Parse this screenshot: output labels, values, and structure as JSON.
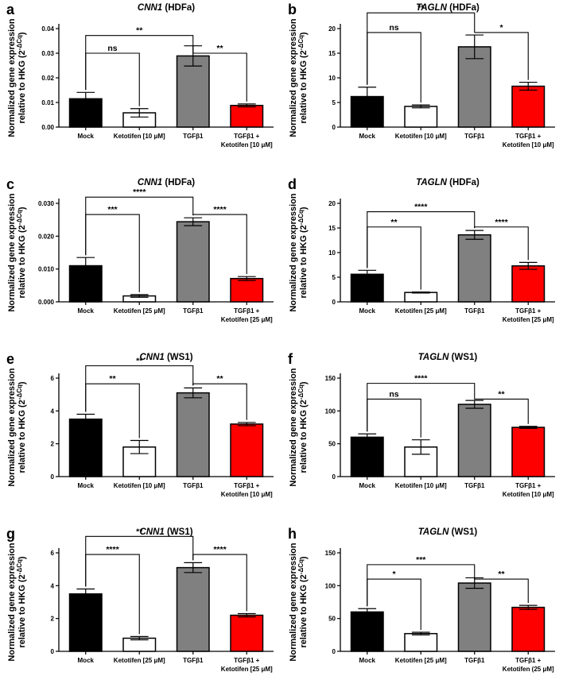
{
  "figure_id": "ketotifen-expression-figure",
  "chart_data": [
    {
      "panel": "a",
      "type": "bar",
      "title_gene": "CNN1",
      "title_cell": " (HDFa)",
      "ylabel_line1": "Normalized gene expression",
      "ylabel_line2": "relative to HKG (2",
      "ylabel_sup": "-ΔCq",
      "ylabel_end": ")",
      "categories": [
        [
          "Mock"
        ],
        [
          "Ketotifen [10 μM]"
        ],
        [
          "TGFβ1"
        ],
        [
          "TGFβ1 +",
          "Ketotifen [10 μM]"
        ]
      ],
      "values": [
        0.0115,
        0.0058,
        0.0289,
        0.0088
      ],
      "errors": [
        0.0026,
        0.0017,
        0.0041,
        0.0006
      ],
      "colors": [
        "#000000",
        "#ffffff",
        "#808080",
        "#ff0000"
      ],
      "ylim": [
        0,
        0.04
      ],
      "yticks": [
        0,
        0.01,
        0.02,
        0.03,
        0.04
      ],
      "ytick_labels": [
        "0.00",
        "0.01",
        "0.02",
        "0.03",
        "0.04"
      ],
      "brackets": [
        {
          "from": 0,
          "to": 2,
          "label": "**",
          "y": 0.0372
        },
        {
          "from": 0,
          "to": 1,
          "label": "ns",
          "y": 0.03
        },
        {
          "from": 2,
          "to": 3,
          "label": "**",
          "y": 0.03
        }
      ]
    },
    {
      "panel": "b",
      "type": "bar",
      "title_gene": "TAGLN",
      "title_cell": " (HDFa)",
      "ylabel_line1": "Normalized gene expression",
      "ylabel_line2": "relative to HKG (2",
      "ylabel_sup": "-ΔCq",
      "ylabel_end": ")",
      "categories": [
        [
          "Mock"
        ],
        [
          "Ketotifen [10 μM]"
        ],
        [
          "TGFβ1"
        ],
        [
          "TGFβ1 +",
          "Ketotifen [10 μM]"
        ]
      ],
      "values": [
        6.2,
        4.2,
        16.3,
        8.3
      ],
      "errors": [
        1.9,
        0.3,
        2.4,
        0.8
      ],
      "colors": [
        "#000000",
        "#ffffff",
        "#808080",
        "#ff0000"
      ],
      "ylim": [
        0,
        20
      ],
      "yticks": [
        0,
        5,
        10,
        15,
        20
      ],
      "ytick_labels": [
        "0",
        "5",
        "10",
        "15",
        "20"
      ],
      "brackets": [
        {
          "from": 0,
          "to": 2,
          "label": "**",
          "y": 23.2
        },
        {
          "from": 0,
          "to": 1,
          "label": "ns",
          "y": 19.2
        },
        {
          "from": 2,
          "to": 3,
          "label": "*",
          "y": 19.2
        }
      ]
    },
    {
      "panel": "c",
      "type": "bar",
      "title_gene": "CNN1",
      "title_cell": " (HDFa)",
      "ylabel_line1": "Normalized gene expression",
      "ylabel_line2": "relative to HKG (2",
      "ylabel_sup": "-ΔCq",
      "ylabel_end": ")",
      "categories": [
        [
          "Mock"
        ],
        [
          "Ketotifen [25 μM]"
        ],
        [
          "TGFβ1"
        ],
        [
          "TGFβ1 +",
          "Ketotifen [25 μM]"
        ]
      ],
      "values": [
        0.011,
        0.0018,
        0.0244,
        0.0071
      ],
      "errors": [
        0.0025,
        0.0004,
        0.0012,
        0.0006
      ],
      "colors": [
        "#000000",
        "#ffffff",
        "#808080",
        "#ff0000"
      ],
      "ylim": [
        0,
        0.03
      ],
      "yticks": [
        0,
        0.01,
        0.02,
        0.03
      ],
      "ytick_labels": [
        "0.000",
        "0.010",
        "0.020",
        "0.030"
      ],
      "brackets": [
        {
          "from": 0,
          "to": 2,
          "label": "****",
          "y": 0.0319
        },
        {
          "from": 0,
          "to": 1,
          "label": "***",
          "y": 0.0266
        },
        {
          "from": 2,
          "to": 3,
          "label": "****",
          "y": 0.0266
        }
      ]
    },
    {
      "panel": "d",
      "type": "bar",
      "title_gene": "TAGLN",
      "title_cell": " (HDFa)",
      "ylabel_line1": "Normalized gene expression",
      "ylabel_line2": "relative to HKG (2",
      "ylabel_sup": "-ΔCq",
      "ylabel_end": ")",
      "categories": [
        [
          "Mock"
        ],
        [
          "Ketotifen [25 μM]"
        ],
        [
          "TGFβ1"
        ],
        [
          "TGFβ1 +",
          "Ketotifen [25 μM]"
        ]
      ],
      "values": [
        5.6,
        1.9,
        13.6,
        7.3
      ],
      "errors": [
        0.8,
        0.1,
        0.9,
        0.7
      ],
      "colors": [
        "#000000",
        "#ffffff",
        "#808080",
        "#ff0000"
      ],
      "ylim": [
        0,
        20
      ],
      "yticks": [
        0,
        5,
        10,
        15,
        20
      ],
      "ytick_labels": [
        "0",
        "5",
        "10",
        "15",
        "20"
      ],
      "brackets": [
        {
          "from": 0,
          "to": 2,
          "label": "****",
          "y": 18.3
        },
        {
          "from": 0,
          "to": 1,
          "label": "**",
          "y": 15.2
        },
        {
          "from": 2,
          "to": 3,
          "label": "****",
          "y": 15.2
        }
      ]
    },
    {
      "panel": "e",
      "type": "bar",
      "title_gene": "CNN1",
      "title_cell": " (WS1)",
      "ylabel_line1": "Normalized gene expression",
      "ylabel_line2": "relative to HKG (2",
      "ylabel_sup": "-ΔCq",
      "ylabel_end": ")",
      "categories": [
        [
          "Mock"
        ],
        [
          "Ketotifen [10 μM]"
        ],
        [
          "TGFβ1"
        ],
        [
          "TGFβ1 +",
          "Ketotifen [10 μM]"
        ]
      ],
      "values": [
        3.5,
        1.8,
        5.1,
        3.2
      ],
      "errors": [
        0.3,
        0.4,
        0.3,
        0.1
      ],
      "colors": [
        "#000000",
        "#ffffff",
        "#808080",
        "#ff0000"
      ],
      "ylim": [
        0,
        6
      ],
      "yticks": [
        0,
        2,
        4,
        6
      ],
      "ytick_labels": [
        "0",
        "2",
        "4",
        "6"
      ],
      "brackets": [
        {
          "from": 0,
          "to": 2,
          "label": "**",
          "y": 6.75
        },
        {
          "from": 0,
          "to": 1,
          "label": "**",
          "y": 5.65
        },
        {
          "from": 2,
          "to": 3,
          "label": "**",
          "y": 5.65
        }
      ]
    },
    {
      "panel": "f",
      "type": "bar",
      "title_gene": "TAGLN",
      "title_cell": " (WS1)",
      "ylabel_line1": "Normalized gene expression",
      "ylabel_line2": "relative to HKG (2",
      "ylabel_sup": "-ΔCq",
      "ylabel_end": ")",
      "categories": [
        [
          "Mock"
        ],
        [
          "Ketotifen [10 μM]"
        ],
        [
          "TGFβ1"
        ],
        [
          "TGFβ1 +",
          "Ketotifen [10 μM]"
        ]
      ],
      "values": [
        60,
        45,
        110,
        75
      ],
      "errors": [
        5,
        11,
        6,
        1.5
      ],
      "colors": [
        "#000000",
        "#ffffff",
        "#808080",
        "#ff0000"
      ],
      "ylim": [
        0,
        150
      ],
      "yticks": [
        0,
        50,
        100,
        150
      ],
      "ytick_labels": [
        "0",
        "50",
        "100",
        "150"
      ],
      "brackets": [
        {
          "from": 0,
          "to": 2,
          "label": "****",
          "y": 142
        },
        {
          "from": 0,
          "to": 1,
          "label": "ns",
          "y": 118
        },
        {
          "from": 2,
          "to": 3,
          "label": "**",
          "y": 118
        }
      ]
    },
    {
      "panel": "g",
      "type": "bar",
      "title_gene": "CNN1",
      "title_cell": " (WS1)",
      "ylabel_line1": "Normalized gene expression",
      "ylabel_line2": "relative to HKG (2",
      "ylabel_sup": "-ΔCq",
      "ylabel_end": ")",
      "categories": [
        [
          "Mock"
        ],
        [
          "Ketotifen [25 μM]"
        ],
        [
          "TGFβ1"
        ],
        [
          "TGFβ1 +",
          "Ketotifen [25 μM]"
        ]
      ],
      "values": [
        3.5,
        0.8,
        5.1,
        2.2
      ],
      "errors": [
        0.3,
        0.1,
        0.3,
        0.1
      ],
      "colors": [
        "#000000",
        "#ffffff",
        "#808080",
        "#ff0000"
      ],
      "ylim": [
        0,
        6
      ],
      "yticks": [
        0,
        2,
        4,
        6
      ],
      "ytick_labels": [
        "0",
        "2",
        "4",
        "6"
      ],
      "brackets": [
        {
          "from": 0,
          "to": 2,
          "label": "**",
          "y": 7.0
        },
        {
          "from": 0,
          "to": 1,
          "label": "****",
          "y": 5.9
        },
        {
          "from": 2,
          "to": 3,
          "label": "****",
          "y": 5.9
        }
      ]
    },
    {
      "panel": "h",
      "type": "bar",
      "title_gene": "TAGLN",
      "title_cell": " (WS1)",
      "ylabel_line1": "Normalized gene expression",
      "ylabel_line2": "relative to HKG (2",
      "ylabel_sup": "-ΔCq",
      "ylabel_end": ")",
      "categories": [
        [
          "Mock"
        ],
        [
          "Ketotifen [25 μM]"
        ],
        [
          "TGFβ1"
        ],
        [
          "TGFβ1 +",
          "Ketotifen (25 μM]"
        ]
      ],
      "values": [
        60,
        27,
        104,
        67
      ],
      "errors": [
        5,
        2,
        8,
        3
      ],
      "colors": [
        "#000000",
        "#ffffff",
        "#808080",
        "#ff0000"
      ],
      "ylim": [
        0,
        150
      ],
      "yticks": [
        0,
        50,
        100,
        150
      ],
      "ytick_labels": [
        "0",
        "50",
        "100",
        "150"
      ],
      "brackets": [
        {
          "from": 0,
          "to": 2,
          "label": "***",
          "y": 132
        },
        {
          "from": 0,
          "to": 1,
          "label": "*",
          "y": 110
        },
        {
          "from": 2,
          "to": 3,
          "label": "**",
          "y": 110
        }
      ]
    }
  ]
}
